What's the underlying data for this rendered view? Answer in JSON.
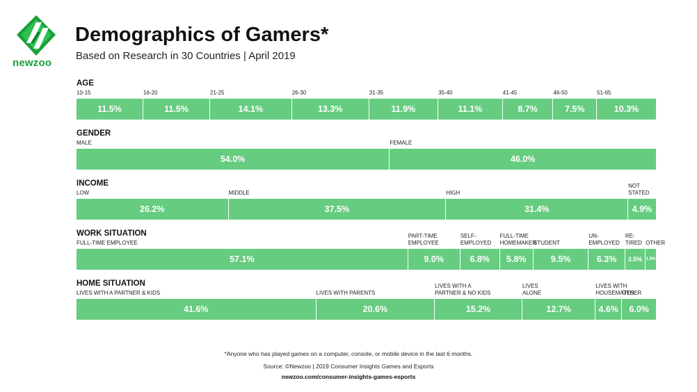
{
  "header": {
    "logo_text": "newzoo",
    "title": "Demographics of Gamers*",
    "subtitle": "Based on Research in 30 Countries | April 2019"
  },
  "colors": {
    "bar": "#66cc80",
    "brand": "#1a9f3a",
    "brand_dark": "#0e7a2a"
  },
  "chart_data": {
    "type": "stacked-bar",
    "title": "Demographics of Gamers*",
    "unit": "%",
    "sections": [
      {
        "name": "AGE",
        "categories": [
          "10-15",
          "16-20",
          "21-25",
          "26-30",
          "31-35",
          "35-40",
          "41-45",
          "46-50",
          "51-65"
        ],
        "values": [
          11.5,
          11.5,
          14.1,
          13.3,
          11.9,
          11.1,
          8.7,
          7.5,
          10.3
        ],
        "value_labels": [
          "11.5%",
          "11.5%",
          "14.1%",
          "13.3%",
          "11.9%",
          "11.1%",
          "8.7%",
          "7.5%",
          "10.3%"
        ]
      },
      {
        "name": "GENDER",
        "categories": [
          "MALE",
          "FEMALE"
        ],
        "values": [
          54.0,
          46.0
        ],
        "value_labels": [
          "54.0%",
          "46.0%"
        ]
      },
      {
        "name": "INCOME",
        "categories": [
          "LOW",
          "MIDDLE",
          "HIGH",
          "NOT\nSTATED"
        ],
        "values": [
          26.2,
          37.5,
          31.4,
          4.9
        ],
        "value_labels": [
          "26.2%",
          "37.5%",
          "31.4%",
          "4.9%"
        ]
      },
      {
        "name": "WORK SITUATION",
        "categories": [
          "FULL-TIME EMPLOYEE",
          "PART-TIME\nEMPLOYEE",
          "SELF-\nEMPLOYED",
          "FULL-TIME\nHOMEMAKER",
          "STUDENT",
          "UN-\nEMPLOYED",
          "RE-\nTIRED",
          "OTHER"
        ],
        "values": [
          57.1,
          9.0,
          6.8,
          5.8,
          9.5,
          6.3,
          3.5,
          1.9
        ],
        "value_labels": [
          "57.1%",
          "9.0%",
          "6.8%",
          "5.8%",
          "9.5%",
          "6.3%",
          "3.5%",
          "1.9%"
        ]
      },
      {
        "name": "HOME SITUATION",
        "categories": [
          "LIVES WITH A PARTNER & KIDS",
          "LIVES WITH PARENTS",
          "LIVES WITH A\nPARTNER & NO KIDS",
          "LIVES\nALONE",
          "LIVES WITH\nHOUSEMATES",
          "OTHER"
        ],
        "values": [
          41.6,
          20.6,
          15.2,
          12.7,
          4.6,
          6.0
        ],
        "value_labels": [
          "41.6%",
          "20.6%",
          "15.2%",
          "12.7%",
          "4.6%",
          "6.0%"
        ]
      }
    ]
  },
  "footer": {
    "footnote": "*Anyone who has played games on a computer, console, or mobile device in the last 6 months.",
    "source": "Source: ©Newzoo | 2019 Consumer Insights Games and Esports",
    "url": "newzoo.com/consumer-insights-games-esports"
  }
}
